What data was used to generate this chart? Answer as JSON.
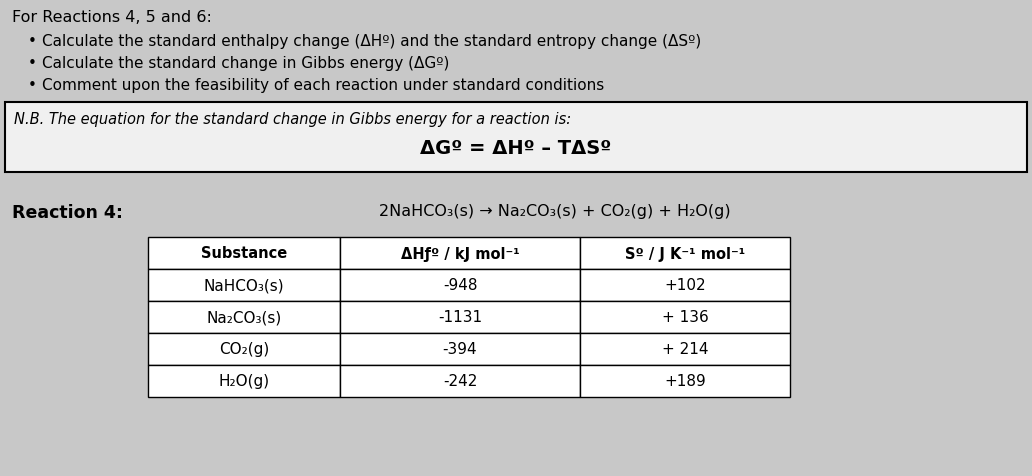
{
  "bg_color": "#c8c8c8",
  "nb_box_color": "#f0f0f0",
  "table_bg": "#f5f5f5",
  "title_line": "For Reactions 4, 5 and 6:",
  "bullets": [
    "Calculate the standard enthalpy change (ΔHº) and the standard entropy change (ΔSº)",
    "Calculate the standard change in Gibbs energy (ΔGº)",
    "Comment upon the feasibility of each reaction under standard conditions"
  ],
  "nb_text": "N.B. The equation for the standard change in Gibbs energy for a reaction is:",
  "equation": "ΔGº = ΔHº – TΔSº",
  "reaction_label": "Reaction 4:",
  "reaction_eq": "2NaHCO₃(s) → Na₂CO₃(s) + CO₂(g) + H₂O(g)",
  "table_headers": [
    "Substance",
    "ΔHƒº / kJ mol⁻¹",
    "Sº / J K⁻¹ mol⁻¹"
  ],
  "table_rows": [
    [
      "NaHCO₃(s)",
      "-948",
      "+102"
    ],
    [
      "Na₂CO₃(s)",
      "-1131",
      "+ 136"
    ],
    [
      "CO₂(g)",
      "-394",
      "+ 214"
    ],
    [
      "H₂O(g)",
      "-242",
      "+189"
    ]
  ],
  "white": "#ffffff",
  "black": "#000000"
}
